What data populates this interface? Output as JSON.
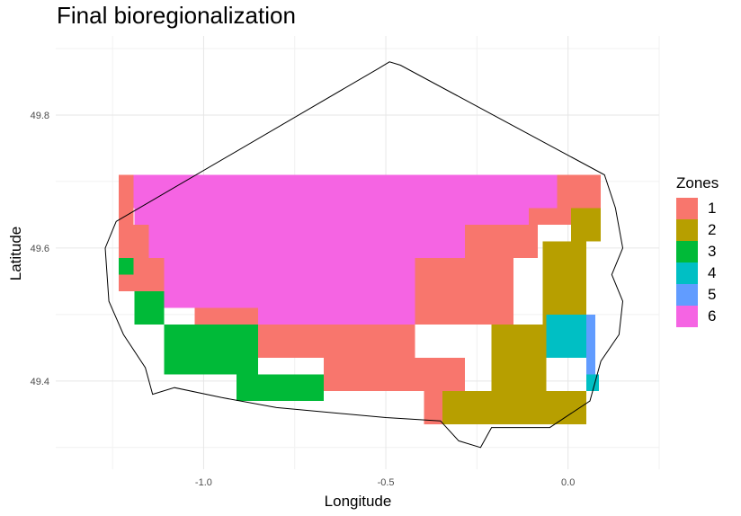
{
  "chart_data": {
    "type": "heatmap",
    "title": "Final bioregionalization",
    "xlabel": "Longitude",
    "ylabel": "Latitude",
    "xlim": [
      -1.27,
      0.25
    ],
    "ylim": [
      49.27,
      49.9
    ],
    "x_ticks": [
      "-1.0",
      "-0.5",
      "0.0"
    ],
    "x_tick_values": [
      -1.0,
      -0.5,
      0.0
    ],
    "y_ticks": [
      "49.4",
      "49.6",
      "49.8"
    ],
    "y_tick_values": [
      49.4,
      49.6,
      49.8
    ],
    "grid": true,
    "legend": {
      "title": "Zones",
      "position": "right",
      "items": [
        {
          "label": "1",
          "color": "#F8766D"
        },
        {
          "label": "2",
          "color": "#B79F00"
        },
        {
          "label": "3",
          "color": "#00BA38"
        },
        {
          "label": "4",
          "color": "#00BFC4"
        },
        {
          "label": "5",
          "color": "#619CFF"
        },
        {
          "label": "6",
          "color": "#F564E3"
        }
      ]
    },
    "cell_size_deg": [
      0.042,
      0.025
    ],
    "regions": [
      {
        "zone": "1",
        "lon": [
          -1.233,
          -1.192
        ],
        "lat": [
          49.635,
          49.71
        ]
      },
      {
        "zone": "1",
        "lon": [
          -1.233,
          -1.15
        ],
        "lat": [
          49.535,
          49.635
        ]
      },
      {
        "zone": "1",
        "lon": [
          -1.15,
          -1.108
        ],
        "lat": [
          49.535,
          49.585
        ]
      },
      {
        "zone": "1",
        "lon": [
          -1.108,
          -1.025
        ],
        "lat": [
          49.51,
          49.56
        ]
      },
      {
        "zone": "1",
        "lon": [
          -1.025,
          -0.85
        ],
        "lat": [
          49.485,
          49.51
        ]
      },
      {
        "zone": "1",
        "lon": [
          -0.85,
          -0.42
        ],
        "lat": [
          49.435,
          49.485
        ]
      },
      {
        "zone": "1",
        "lon": [
          -0.67,
          -0.283
        ],
        "lat": [
          49.385,
          49.435
        ]
      },
      {
        "zone": "1",
        "lon": [
          -0.42,
          -0.15
        ],
        "lat": [
          49.485,
          49.585
        ]
      },
      {
        "zone": "1",
        "lon": [
          -0.283,
          -0.083
        ],
        "lat": [
          49.585,
          49.635
        ]
      },
      {
        "zone": "1",
        "lon": [
          -0.108,
          0.008
        ],
        "lat": [
          49.635,
          49.66
        ]
      },
      {
        "zone": "1",
        "lon": [
          -0.03,
          0.09
        ],
        "lat": [
          49.66,
          49.71
        ]
      },
      {
        "zone": "1",
        "lon": [
          -0.395,
          -0.345
        ],
        "lat": [
          49.335,
          49.385
        ]
      },
      {
        "zone": "2",
        "lon": [
          0.008,
          0.09
        ],
        "lat": [
          49.61,
          49.66
        ]
      },
      {
        "zone": "2",
        "lon": [
          -0.07,
          0.05
        ],
        "lat": [
          49.485,
          49.61
        ]
      },
      {
        "zone": "2",
        "lon": [
          -0.21,
          -0.06
        ],
        "lat": [
          49.385,
          49.485
        ]
      },
      {
        "zone": "2",
        "lon": [
          -0.345,
          0.05
        ],
        "lat": [
          49.335,
          49.385
        ]
      },
      {
        "zone": "3",
        "lon": [
          -1.233,
          -1.192
        ],
        "lat": [
          49.56,
          49.585
        ]
      },
      {
        "zone": "3",
        "lon": [
          -1.19,
          -1.108
        ],
        "lat": [
          49.485,
          49.535
        ]
      },
      {
        "zone": "3",
        "lon": [
          -1.108,
          -0.85
        ],
        "lat": [
          49.41,
          49.485
        ]
      },
      {
        "zone": "3",
        "lon": [
          -0.91,
          -0.67
        ],
        "lat": [
          49.37,
          49.41
        ]
      },
      {
        "zone": "4",
        "lon": [
          -0.06,
          0.05
        ],
        "lat": [
          49.435,
          49.5
        ]
      },
      {
        "zone": "4",
        "lon": [
          0.05,
          0.085
        ],
        "lat": [
          49.385,
          49.41
        ]
      },
      {
        "zone": "5",
        "lon": [
          0.05,
          0.075
        ],
        "lat": [
          49.41,
          49.5
        ]
      },
      {
        "zone": "6",
        "lon": [
          -1.192,
          -0.03
        ],
        "lat": [
          49.66,
          49.71
        ]
      },
      {
        "zone": "6",
        "lon": [
          -1.19,
          -0.108
        ],
        "lat": [
          49.635,
          49.66
        ]
      },
      {
        "zone": "6",
        "lon": [
          -1.15,
          -0.283
        ],
        "lat": [
          49.585,
          49.635
        ]
      },
      {
        "zone": "6",
        "lon": [
          -1.108,
          -0.42
        ],
        "lat": [
          49.51,
          49.585
        ]
      },
      {
        "zone": "6",
        "lon": [
          -0.85,
          -0.42
        ],
        "lat": [
          49.485,
          49.51
        ]
      }
    ],
    "outline": [
      [
        -1.24,
        49.64
      ],
      [
        -0.52,
        49.87
      ],
      [
        -0.49,
        49.88
      ],
      [
        -0.46,
        49.875
      ],
      [
        0.1,
        49.71
      ],
      [
        0.13,
        49.66
      ],
      [
        0.15,
        49.6
      ],
      [
        0.12,
        49.56
      ],
      [
        0.15,
        49.52
      ],
      [
        0.14,
        49.47
      ],
      [
        0.09,
        49.43
      ],
      [
        0.06,
        49.37
      ],
      [
        -0.05,
        49.33
      ],
      [
        -0.21,
        49.33
      ],
      [
        -0.24,
        49.3
      ],
      [
        -0.3,
        49.31
      ],
      [
        -0.35,
        49.34
      ],
      [
        -0.5,
        49.345
      ],
      [
        -0.8,
        49.36
      ],
      [
        -0.95,
        49.375
      ],
      [
        -1.08,
        49.39
      ],
      [
        -1.14,
        49.38
      ],
      [
        -1.16,
        49.42
      ],
      [
        -1.22,
        49.47
      ],
      [
        -1.26,
        49.52
      ],
      [
        -1.27,
        49.6
      ],
      [
        -1.24,
        49.64
      ]
    ]
  }
}
